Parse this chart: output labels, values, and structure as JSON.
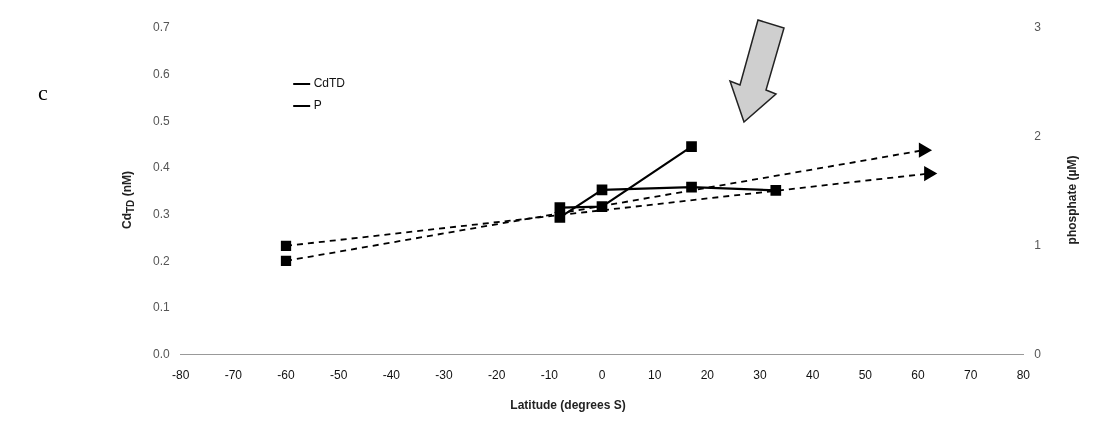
{
  "chart_data": {
    "type": "line",
    "xlabel": "Latitude (degrees S)",
    "ylabel": "Cd$_{TD}$ (nM)",
    "y2label": "phosphate (µM)",
    "annotations": [
      "c"
    ],
    "xlim": [
      -80,
      80
    ],
    "xticks": [
      -80,
      -70,
      -60,
      -50,
      -40,
      -30,
      -20,
      -10,
      0,
      10,
      20,
      30,
      40,
      50,
      60,
      70,
      80
    ],
    "ylim": [
      0,
      0.7
    ],
    "yticks": [
      {
        "value": 0,
        "label": "0.0"
      },
      {
        "value": 0.1,
        "label": "0.1"
      },
      {
        "value": 0.2,
        "label": "0.2"
      },
      {
        "value": 0.3,
        "label": "0.3"
      },
      {
        "value": 0.4,
        "label": "0.4"
      },
      {
        "value": 0.5,
        "label": "0.5"
      },
      {
        "value": 0.6,
        "label": "0.6"
      },
      {
        "value": 0.7,
        "label": "0.7"
      }
    ],
    "y2lim": [
      0,
      3
    ],
    "y2ticks": [
      0,
      1,
      2,
      3
    ],
    "grid": false,
    "legend": "top left",
    "marker": "square",
    "series": [
      {
        "name": "CdTD",
        "color": "#000000",
        "line_style": "solid",
        "x": [
          -8,
          0,
          17,
          33
        ],
        "values": [
          0.294,
          0.353,
          0.359,
          0.352
        ]
      },
      {
        "name": "P",
        "color": "#000000",
        "line_style": "solid",
        "axis": "y2",
        "x": [
          -8,
          0,
          17
        ],
        "values": [
          1.35,
          1.36,
          1.91
        ]
      },
      {
        "color": "#000000",
        "line_style": "dashed",
        "x": [
          -60,
          62
        ],
        "values": [
          0.233,
          0.388
        ]
      },
      {
        "color": "#000000",
        "line_style": "dashed",
        "x": [
          -60,
          61
        ],
        "values": [
          0.201,
          0.438
        ]
      }
    ]
  }
}
